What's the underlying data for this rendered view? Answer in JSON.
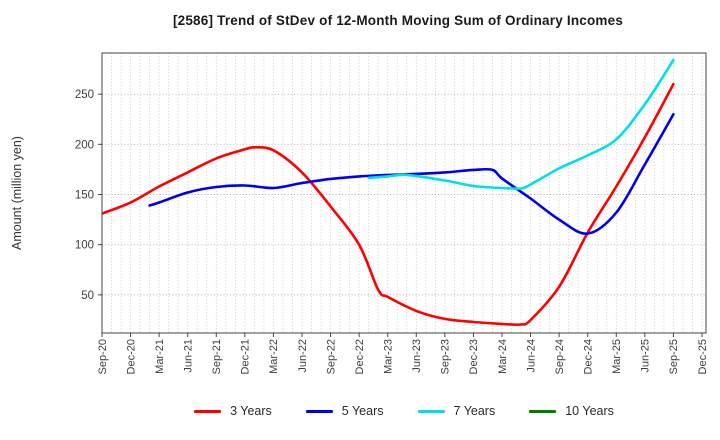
{
  "title": "[2586]  Trend of StDev of 12-Month Moving Sum of Ordinary Incomes",
  "y_axis": {
    "label": "Amount (million yen)",
    "ticks": [
      50,
      100,
      150,
      200,
      250
    ]
  },
  "x_axis": {
    "labels": [
      "Sep-20",
      "Dec-20",
      "Mar-21",
      "Jun-21",
      "Sep-21",
      "Dec-21",
      "Mar-22",
      "Jun-22",
      "Sep-22",
      "Dec-22",
      "Mar-23",
      "Jun-23",
      "Sep-23",
      "Dec-23",
      "Mar-24",
      "Jun-24",
      "Sep-24",
      "Dec-24",
      "Mar-25",
      "Jun-25",
      "Sep-25",
      "Dec-25"
    ]
  },
  "legend": {
    "items": [
      {
        "label": "3 Years",
        "color": "#ff0000"
      },
      {
        "label": "5 Years",
        "color": "#0000ee"
      },
      {
        "label": "7 Years",
        "color": "#00e0e6"
      },
      {
        "label": "10 Years",
        "color": "#008000"
      }
    ]
  },
  "chart_data": {
    "type": "line",
    "title": "[2586]  Trend of StDev of 12-Month Moving Sum of Ordinary Incomes",
    "xlabel": "",
    "ylabel": "Amount (million yen)",
    "ylim": [
      12,
      291
    ],
    "y_ticks": [
      50,
      100,
      150,
      200,
      250
    ],
    "x_tick_labels": [
      "Sep-20",
      "Dec-20",
      "Mar-21",
      "Jun-21",
      "Sep-21",
      "Dec-21",
      "Mar-22",
      "Jun-22",
      "Sep-22",
      "Dec-22",
      "Mar-23",
      "Jun-23",
      "Sep-23",
      "Dec-23",
      "Mar-24",
      "Jun-24",
      "Sep-24",
      "Dec-24",
      "Mar-25",
      "Jun-25",
      "Sep-25",
      "Dec-25"
    ],
    "x_unit": "months since Sep-20, 3 months per tick",
    "months_total": 63,
    "grid": "dotted monthly vertical lines, dotted horizontal lines each 50",
    "legend_position": "bottom center",
    "series": [
      {
        "name": "3 Years",
        "color": "#ff0000",
        "points": [
          [
            0,
            131
          ],
          [
            3,
            142
          ],
          [
            6,
            158
          ],
          [
            9,
            172
          ],
          [
            12,
            186
          ],
          [
            15,
            195
          ],
          [
            16,
            197
          ],
          [
            18,
            194
          ],
          [
            21,
            172
          ],
          [
            24,
            138
          ],
          [
            27,
            100
          ],
          [
            29,
            55
          ],
          [
            30,
            48
          ],
          [
            33,
            34
          ],
          [
            36,
            26
          ],
          [
            39,
            23
          ],
          [
            42,
            21
          ],
          [
            44,
            20.5
          ],
          [
            45,
            25
          ],
          [
            48,
            58
          ],
          [
            51,
            112
          ],
          [
            54,
            158
          ],
          [
            57,
            207
          ],
          [
            60,
            260
          ]
        ]
      },
      {
        "name": "5 Years",
        "color": "#0000ee",
        "points": [
          [
            5,
            139
          ],
          [
            6,
            142
          ],
          [
            9,
            152
          ],
          [
            12,
            157.5
          ],
          [
            15,
            159
          ],
          [
            18,
            156.5
          ],
          [
            21,
            161.5
          ],
          [
            24,
            165.5
          ],
          [
            27,
            168
          ],
          [
            30,
            169.5
          ],
          [
            33,
            170.5
          ],
          [
            36,
            172
          ],
          [
            39,
            174.5
          ],
          [
            41,
            174.5
          ],
          [
            42,
            166
          ],
          [
            45,
            146
          ],
          [
            48,
            125
          ],
          [
            51,
            111
          ],
          [
            54,
            132
          ],
          [
            57,
            180
          ],
          [
            60,
            230
          ]
        ]
      },
      {
        "name": "7 Years",
        "color": "#00e0e6",
        "points": [
          [
            28,
            166.5
          ],
          [
            30,
            168
          ],
          [
            32,
            169.5
          ],
          [
            36,
            164
          ],
          [
            39,
            158.5
          ],
          [
            42,
            156.5
          ],
          [
            44,
            156
          ],
          [
            45,
            160
          ],
          [
            48,
            176
          ],
          [
            51,
            189
          ],
          [
            54,
            205
          ],
          [
            57,
            240
          ],
          [
            60,
            284
          ]
        ]
      },
      {
        "name": "10 Years",
        "color": "#008000",
        "points": []
      }
    ]
  }
}
